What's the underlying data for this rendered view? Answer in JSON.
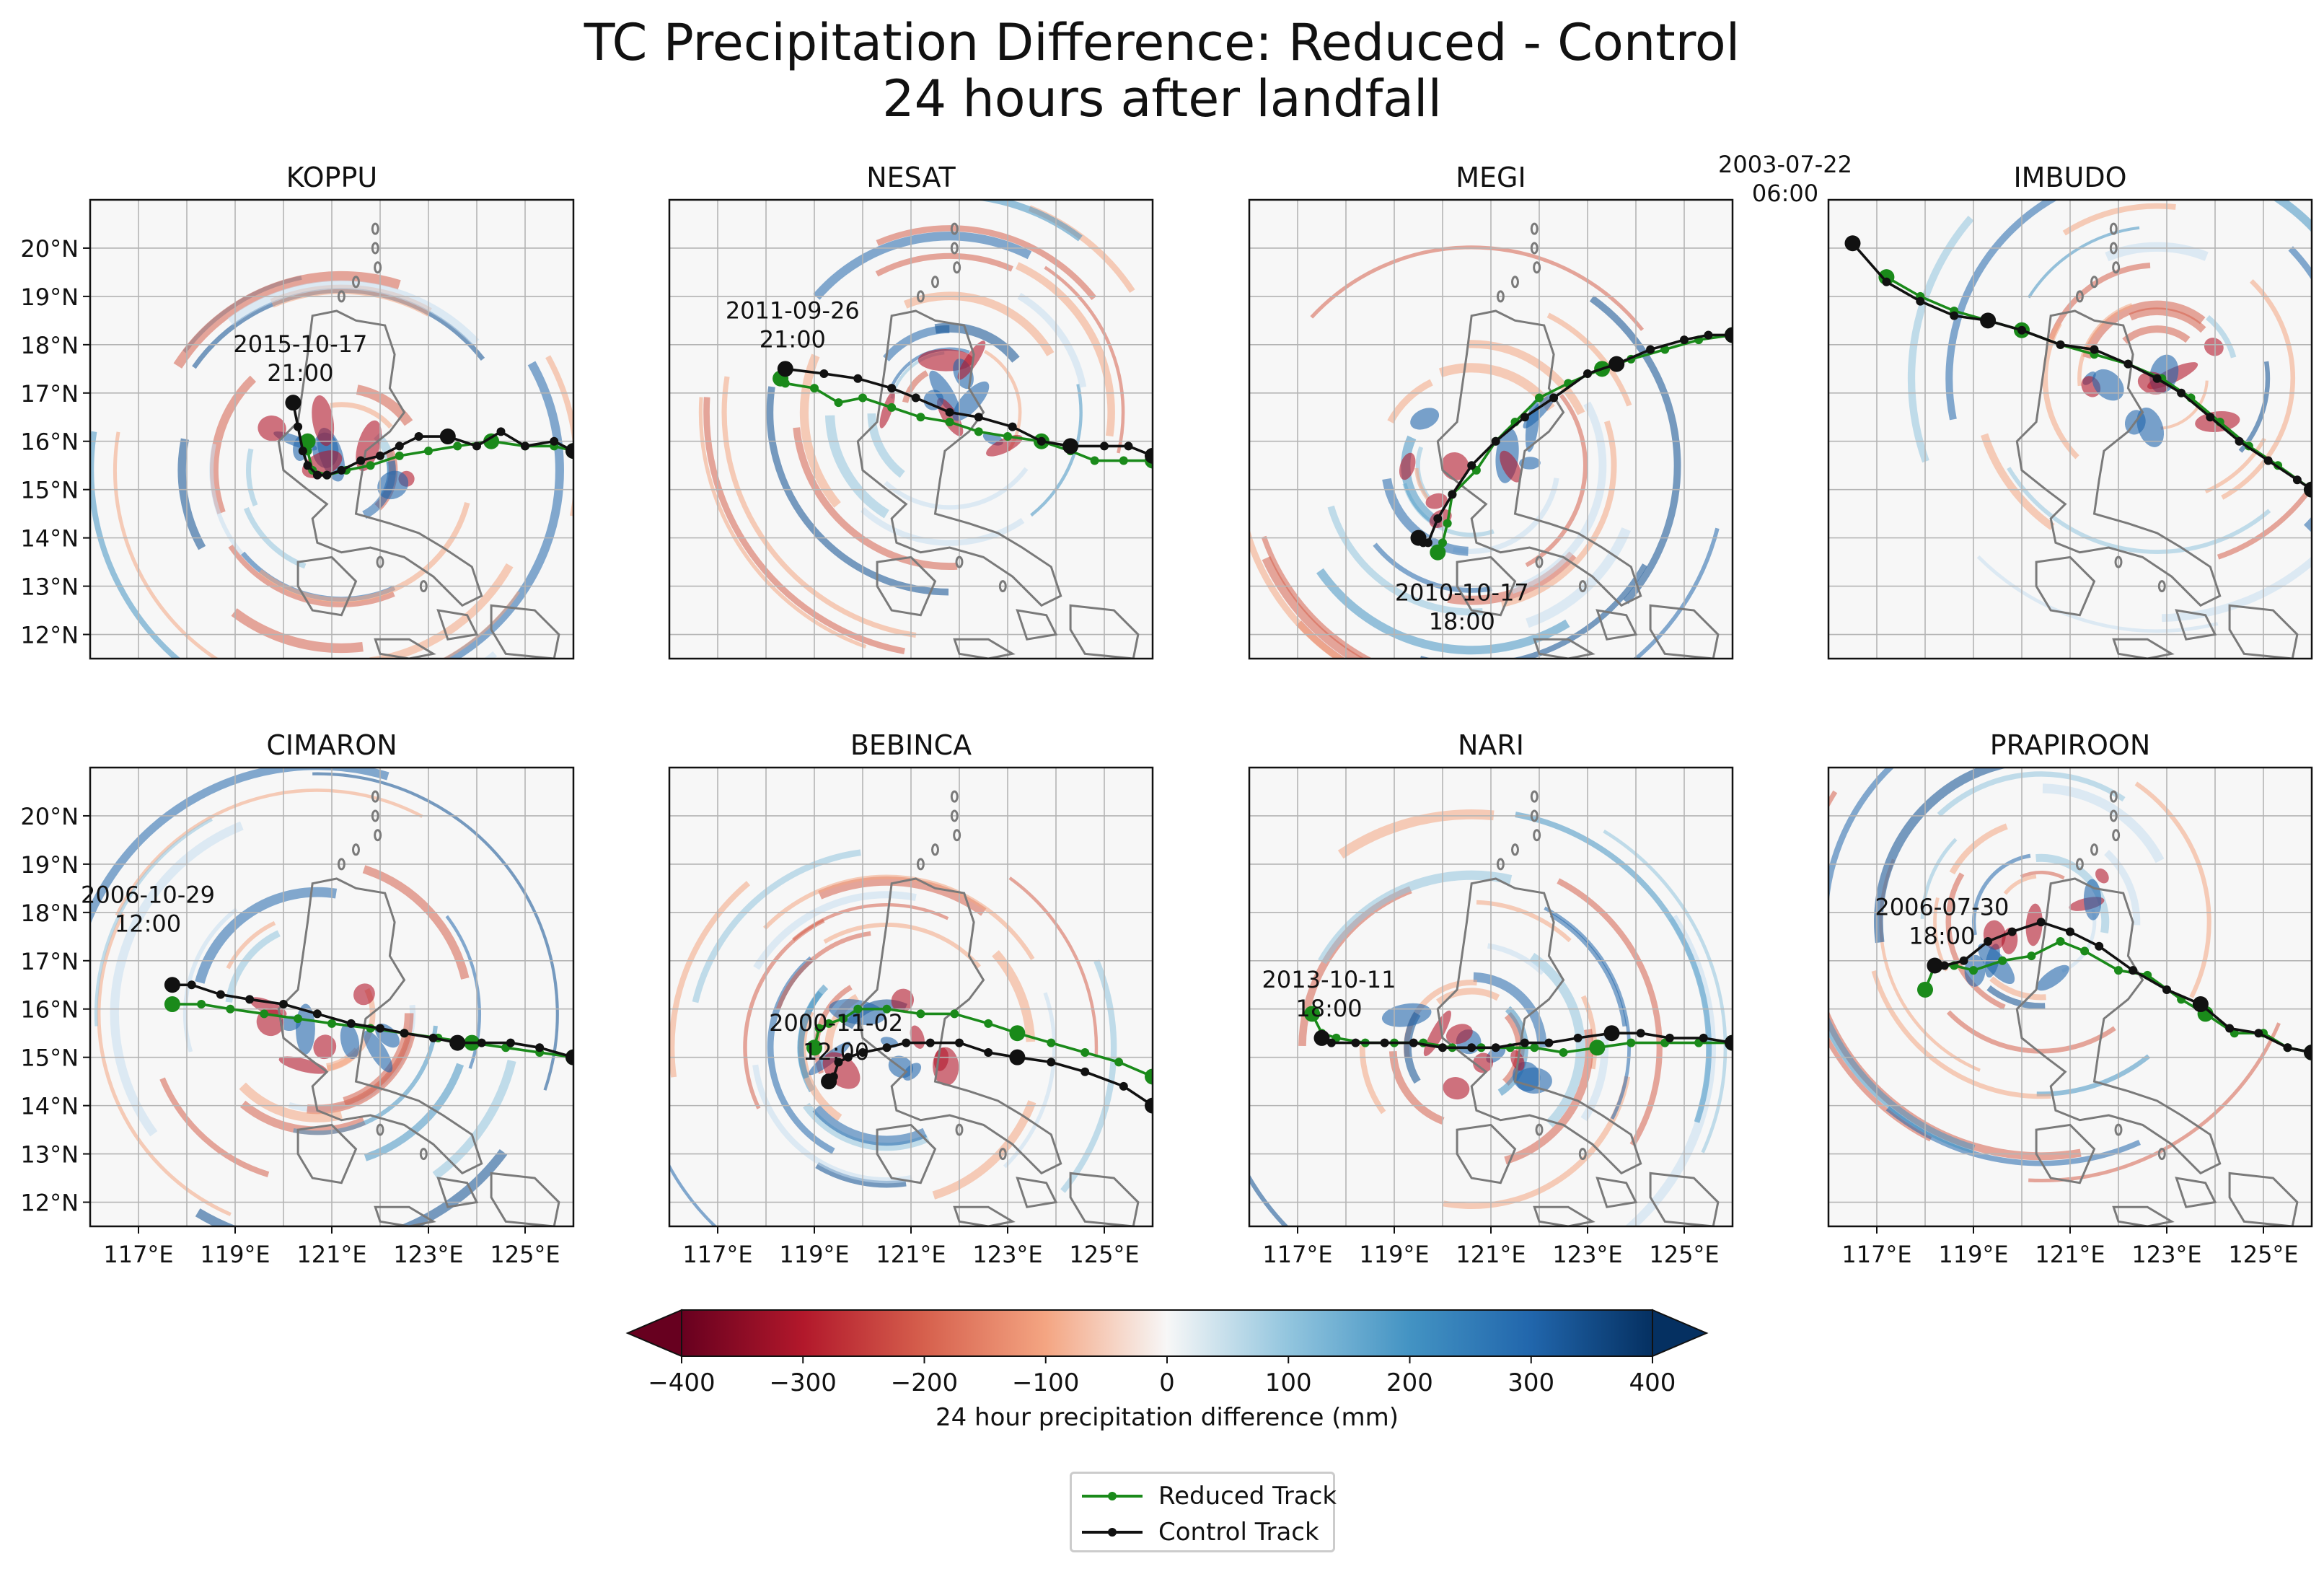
{
  "figure": {
    "title_line1": "TC Precipitation Difference: Reduced - Control",
    "title_line2": "24 hours after landfall"
  },
  "colors": {
    "reduced": "#1a8a1a",
    "control": "#111111",
    "land_outline": "#7a7a7a",
    "grid": "#b4b4b4",
    "cmap_low": "#67001f",
    "cmap_mid": "#f7f7f7",
    "cmap_high": "#053061"
  },
  "chart_data": {
    "type": "map-panels",
    "lon_range": [
      116,
      126
    ],
    "lat_range": [
      11.5,
      21
    ],
    "x_ticks": [
      "117°E",
      "119°E",
      "121°E",
      "123°E",
      "125°E"
    ],
    "x_tick_values": [
      117,
      119,
      121,
      123,
      125
    ],
    "y_ticks": [
      "20°N",
      "19°N",
      "18°N",
      "17°N",
      "16°N",
      "15°N",
      "14°N",
      "13°N",
      "12°N"
    ],
    "y_tick_values": [
      20,
      19,
      18,
      17,
      16,
      15,
      14,
      13,
      12
    ],
    "grid": true,
    "panels": [
      {
        "name": "KOPPU",
        "landfall_label": [
          "2015-10-17",
          "21:00"
        ],
        "control_track": [
          [
            126,
            15.8
          ],
          [
            125.6,
            16.0
          ],
          [
            125,
            15.9
          ],
          [
            124.5,
            16.2
          ],
          [
            124,
            15.9
          ],
          [
            123.4,
            16.1
          ],
          [
            122.8,
            16.1
          ],
          [
            122.4,
            15.9
          ],
          [
            122,
            15.7
          ],
          [
            121.6,
            15.6
          ],
          [
            121.2,
            15.4
          ],
          [
            120.9,
            15.3
          ],
          [
            120.7,
            15.3
          ],
          [
            120.5,
            15.5
          ],
          [
            120.4,
            15.8
          ],
          [
            120.3,
            16.3
          ],
          [
            120.2,
            16.8
          ]
        ],
        "reduced_track": [
          [
            126,
            15.8
          ],
          [
            125.6,
            15.9
          ],
          [
            125,
            15.9
          ],
          [
            124.3,
            16
          ],
          [
            123.6,
            15.9
          ],
          [
            123,
            15.8
          ],
          [
            122.4,
            15.7
          ],
          [
            121.8,
            15.5
          ],
          [
            121.3,
            15.4
          ],
          [
            120.9,
            15.3
          ],
          [
            120.6,
            15.4
          ],
          [
            120.5,
            15.8
          ],
          [
            120.5,
            16.0
          ]
        ]
      },
      {
        "name": "NESAT",
        "landfall_label": [
          "2011-09-26",
          "21:00"
        ],
        "control_track": [
          [
            126,
            15.7
          ],
          [
            125.5,
            15.9
          ],
          [
            125,
            15.9
          ],
          [
            124.3,
            15.9
          ],
          [
            123.7,
            16.0
          ],
          [
            123.1,
            16.3
          ],
          [
            122.4,
            16.5
          ],
          [
            121.8,
            16.6
          ],
          [
            121.1,
            16.9
          ],
          [
            120.6,
            17.1
          ],
          [
            119.9,
            17.3
          ],
          [
            119.2,
            17.4
          ],
          [
            118.4,
            17.5
          ]
        ],
        "reduced_track": [
          [
            126,
            15.6
          ],
          [
            125.4,
            15.6
          ],
          [
            124.8,
            15.6
          ],
          [
            124.3,
            15.8
          ],
          [
            123.7,
            16.0
          ],
          [
            123,
            16.1
          ],
          [
            122.4,
            16.2
          ],
          [
            121.8,
            16.4
          ],
          [
            121.2,
            16.5
          ],
          [
            120.6,
            16.7
          ],
          [
            120,
            16.9
          ],
          [
            119.5,
            16.8
          ],
          [
            119,
            17.1
          ],
          [
            118.4,
            17.2
          ],
          [
            118.3,
            17.3
          ]
        ]
      },
      {
        "name": "MEGI",
        "landfall_label": [
          "2010-10-17",
          "18:00"
        ],
        "control_track": [
          [
            126,
            18.2
          ],
          [
            125.5,
            18.2
          ],
          [
            125,
            18.1
          ],
          [
            124.3,
            17.9
          ],
          [
            123.6,
            17.6
          ],
          [
            123,
            17.4
          ],
          [
            122.3,
            16.9
          ],
          [
            121.7,
            16.5
          ],
          [
            121.1,
            16.0
          ],
          [
            120.6,
            15.5
          ],
          [
            120.2,
            14.9
          ],
          [
            119.9,
            14.4
          ],
          [
            119.7,
            13.9
          ],
          [
            119.6,
            13.9
          ],
          [
            119.5,
            14.0
          ]
        ],
        "reduced_track": [
          [
            126,
            18.2
          ],
          [
            125.3,
            18.1
          ],
          [
            124.6,
            17.9
          ],
          [
            123.9,
            17.7
          ],
          [
            123.3,
            17.5
          ],
          [
            122.6,
            17.2
          ],
          [
            122,
            16.9
          ],
          [
            121.5,
            16.4
          ],
          [
            121.1,
            16.0
          ],
          [
            120.7,
            15.4
          ],
          [
            120.2,
            14.9
          ],
          [
            120.1,
            14.3
          ],
          [
            120,
            13.9
          ],
          [
            119.9,
            13.7
          ]
        ]
      },
      {
        "name": "IMBUDO",
        "landfall_label": [
          "2003-07-22",
          "06:00"
        ],
        "control_track": [
          [
            116.5,
            20.1
          ],
          [
            117.2,
            19.3
          ],
          [
            117.9,
            18.9
          ],
          [
            118.6,
            18.6
          ],
          [
            119.3,
            18.5
          ],
          [
            120,
            18.3
          ],
          [
            120.8,
            18.0
          ],
          [
            121.5,
            17.9
          ],
          [
            122.2,
            17.6
          ],
          [
            122.8,
            17.3
          ],
          [
            123.3,
            17.0
          ],
          [
            123.9,
            16.5
          ],
          [
            124.5,
            16.0
          ],
          [
            125.1,
            15.6
          ],
          [
            125.7,
            15.2
          ],
          [
            126,
            15.0
          ]
        ],
        "reduced_track": [
          [
            117.2,
            19.4
          ],
          [
            117.9,
            19.0
          ],
          [
            118.6,
            18.7
          ],
          [
            119.3,
            18.5
          ],
          [
            120,
            18.3
          ],
          [
            120.8,
            18.0
          ],
          [
            121.5,
            17.8
          ],
          [
            122.2,
            17.6
          ],
          [
            122.9,
            17.3
          ],
          [
            123.5,
            16.9
          ],
          [
            124.1,
            16.4
          ],
          [
            124.7,
            15.9
          ],
          [
            125.3,
            15.5
          ],
          [
            126,
            15.0
          ]
        ]
      },
      {
        "name": "CIMARON",
        "landfall_label": [
          "2006-10-29",
          "12:00"
        ],
        "control_track": [
          [
            126,
            15.0
          ],
          [
            125.3,
            15.2
          ],
          [
            124.7,
            15.3
          ],
          [
            124.1,
            15.3
          ],
          [
            123.6,
            15.3
          ],
          [
            123.1,
            15.4
          ],
          [
            122.5,
            15.5
          ],
          [
            122,
            15.6
          ],
          [
            121.4,
            15.7
          ],
          [
            120.7,
            15.9
          ],
          [
            120,
            16.1
          ],
          [
            119.3,
            16.2
          ],
          [
            118.7,
            16.3
          ],
          [
            118.1,
            16.5
          ],
          [
            117.7,
            16.5
          ]
        ],
        "reduced_track": [
          [
            126,
            15.0
          ],
          [
            125.3,
            15.1
          ],
          [
            124.6,
            15.2
          ],
          [
            123.9,
            15.3
          ],
          [
            123.2,
            15.4
          ],
          [
            122.5,
            15.5
          ],
          [
            121.8,
            15.6
          ],
          [
            121,
            15.7
          ],
          [
            120.3,
            15.8
          ],
          [
            119.6,
            15.9
          ],
          [
            118.9,
            16.0
          ],
          [
            118.3,
            16.1
          ],
          [
            117.7,
            16.1
          ]
        ]
      },
      {
        "name": "BEBINCA",
        "landfall_label": [
          "2000-11-02",
          "12:00"
        ],
        "control_track": [
          [
            126,
            14.0
          ],
          [
            125.4,
            14.4
          ],
          [
            124.6,
            14.7
          ],
          [
            123.9,
            14.9
          ],
          [
            123.2,
            15.0
          ],
          [
            122.6,
            15.1
          ],
          [
            122,
            15.3
          ],
          [
            121.4,
            15.3
          ],
          [
            120.9,
            15.3
          ],
          [
            120.5,
            15.2
          ],
          [
            120,
            15.1
          ],
          [
            119.7,
            15.0
          ],
          [
            119.5,
            14.9
          ],
          [
            119.4,
            14.6
          ],
          [
            119.3,
            14.5
          ]
        ],
        "reduced_track": [
          [
            126,
            14.6
          ],
          [
            125.3,
            14.9
          ],
          [
            124.6,
            15.1
          ],
          [
            123.9,
            15.3
          ],
          [
            123.2,
            15.5
          ],
          [
            122.6,
            15.7
          ],
          [
            121.9,
            15.9
          ],
          [
            121.2,
            15.9
          ],
          [
            120.5,
            16.0
          ],
          [
            119.9,
            16.0
          ],
          [
            119.6,
            15.8
          ],
          [
            119.3,
            15.7
          ],
          [
            119.1,
            15.6
          ],
          [
            119,
            15.2
          ]
        ]
      },
      {
        "name": "NARI",
        "landfall_label": [
          "2013-10-11",
          "18:00"
        ],
        "control_track": [
          [
            126,
            15.3
          ],
          [
            125.4,
            15.4
          ],
          [
            124.7,
            15.4
          ],
          [
            124.1,
            15.5
          ],
          [
            123.5,
            15.5
          ],
          [
            122.8,
            15.4
          ],
          [
            122.2,
            15.3
          ],
          [
            121.7,
            15.3
          ],
          [
            121.1,
            15.2
          ],
          [
            120.6,
            15.2
          ],
          [
            120,
            15.2
          ],
          [
            119.4,
            15.3
          ],
          [
            118.8,
            15.3
          ],
          [
            118.2,
            15.3
          ],
          [
            117.7,
            15.3
          ],
          [
            117.5,
            15.4
          ]
        ],
        "reduced_track": [
          [
            126,
            15.3
          ],
          [
            125.3,
            15.3
          ],
          [
            124.6,
            15.3
          ],
          [
            123.9,
            15.3
          ],
          [
            123.2,
            15.2
          ],
          [
            122.5,
            15.1
          ],
          [
            121.9,
            15.2
          ],
          [
            121.4,
            15.2
          ],
          [
            120.8,
            15.2
          ],
          [
            120.2,
            15.2
          ],
          [
            119.6,
            15.3
          ],
          [
            119,
            15.3
          ],
          [
            118.4,
            15.3
          ],
          [
            117.8,
            15.4
          ],
          [
            117.5,
            15.5
          ],
          [
            117.3,
            15.9
          ]
        ]
      },
      {
        "name": "PRAPIROON",
        "landfall_label": [
          "2006-07-30",
          "18:00"
        ],
        "control_track": [
          [
            126,
            15.1
          ],
          [
            125.5,
            15.2
          ],
          [
            124.9,
            15.5
          ],
          [
            124.3,
            15.6
          ],
          [
            123.7,
            16.1
          ],
          [
            123,
            16.4
          ],
          [
            122.3,
            16.8
          ],
          [
            121.6,
            17.3
          ],
          [
            121,
            17.6
          ],
          [
            120.4,
            17.8
          ],
          [
            119.8,
            17.6
          ],
          [
            119.3,
            17.4
          ],
          [
            118.8,
            17.0
          ],
          [
            118.4,
            16.9
          ],
          [
            118.2,
            16.9
          ]
        ],
        "reduced_track": [
          [
            126,
            15.1
          ],
          [
            125.5,
            15.2
          ],
          [
            125,
            15.5
          ],
          [
            124.4,
            15.5
          ],
          [
            123.8,
            15.9
          ],
          [
            123.3,
            16.2
          ],
          [
            122.6,
            16.7
          ],
          [
            122,
            16.8
          ],
          [
            121.3,
            17.2
          ],
          [
            120.8,
            17.4
          ],
          [
            120.2,
            17.1
          ],
          [
            119.6,
            17.0
          ],
          [
            119,
            16.8
          ],
          [
            118.6,
            16.9
          ],
          [
            118.2,
            16.9
          ],
          [
            118,
            16.4
          ]
        ]
      }
    ],
    "colorbar": {
      "label": "24 hour precipitation difference (mm)",
      "min": -400,
      "max": 400,
      "ticks": [
        "−400",
        "−300",
        "−200",
        "−100",
        "0",
        "100",
        "200",
        "300",
        "400"
      ],
      "tick_values": [
        -400,
        -300,
        -200,
        -100,
        0,
        100,
        200,
        300,
        400
      ],
      "colormap": "RdBu_r",
      "extend": "both"
    },
    "legend": {
      "items": [
        {
          "label": "Reduced Track",
          "color": "#1a8a1a"
        },
        {
          "label": "Control Track",
          "color": "#111111"
        }
      ]
    }
  }
}
